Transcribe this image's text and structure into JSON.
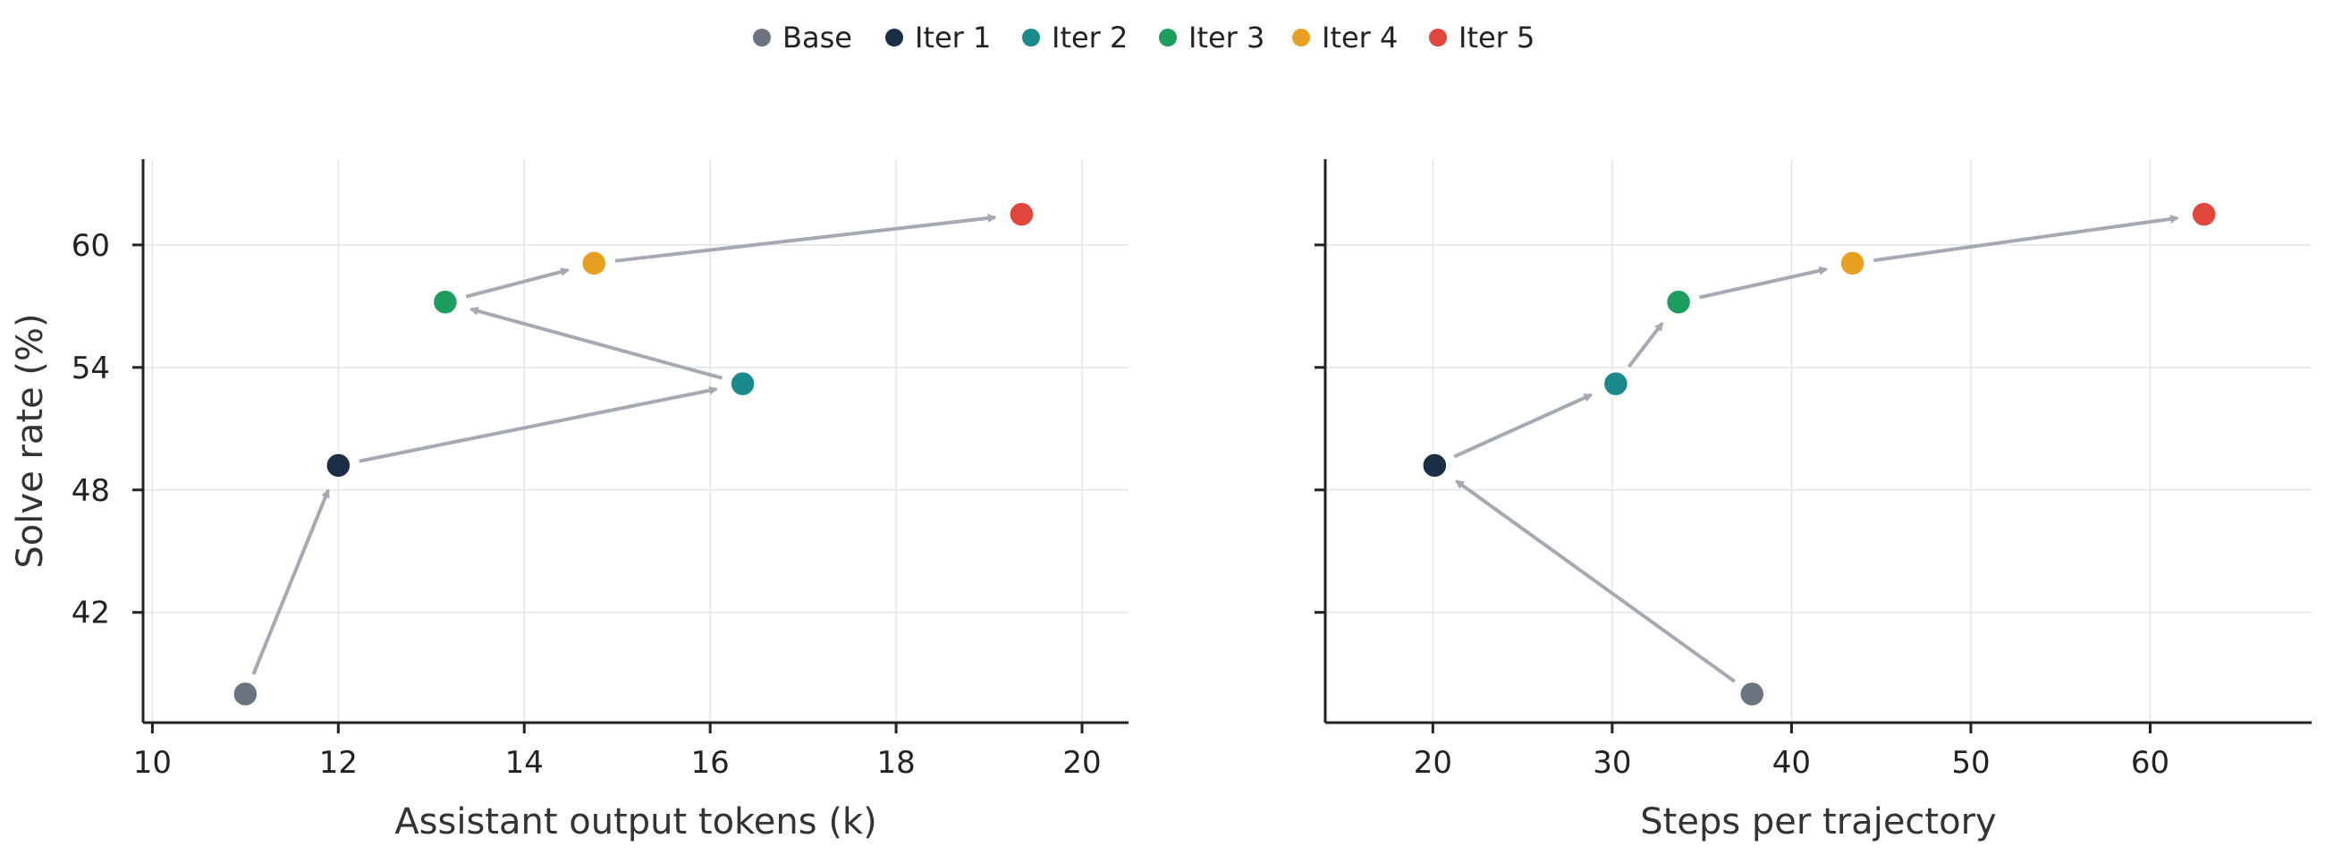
{
  "colors": {
    "grid": "#e3e5e8",
    "axis": "#222222",
    "arrow": "#a4a9b2"
  },
  "legend": {
    "items": [
      {
        "label": "Base",
        "color": "#6b7280"
      },
      {
        "label": "Iter 1",
        "color": "#1a2e45"
      },
      {
        "label": "Iter 2",
        "color": "#1a8a8a"
      },
      {
        "label": "Iter 3",
        "color": "#1e9e5e"
      },
      {
        "label": "Iter 4",
        "color": "#e8a020"
      },
      {
        "label": "Iter 5",
        "color": "#e0463c"
      }
    ]
  },
  "chart_data": [
    {
      "type": "scatter",
      "xlabel": "Assistant output tokens (k)",
      "ylabel": "Solve rate (%)",
      "xlim": [
        9.9,
        20.5
      ],
      "ylim": [
        36.6,
        64.2
      ],
      "xticks": [
        10,
        12,
        14,
        16,
        18,
        20
      ],
      "yticks": [
        42,
        48,
        54,
        60
      ],
      "grid": true,
      "points": [
        {
          "series": "Base",
          "x": 11.0,
          "y": 38.0
        },
        {
          "series": "Iter 1",
          "x": 12.0,
          "y": 49.2
        },
        {
          "series": "Iter 2",
          "x": 16.35,
          "y": 53.2
        },
        {
          "series": "Iter 3",
          "x": 13.15,
          "y": 57.2
        },
        {
          "series": "Iter 4",
          "x": 14.75,
          "y": 59.1
        },
        {
          "series": "Iter 5",
          "x": 19.35,
          "y": 61.5
        }
      ],
      "arrows": "sequential"
    },
    {
      "type": "scatter",
      "xlabel": "Steps per trajectory",
      "ylabel": "",
      "xlim": [
        14.0,
        69.0
      ],
      "ylim": [
        36.6,
        64.2
      ],
      "xticks": [
        20,
        30,
        40,
        50,
        60
      ],
      "yticks": [
        42,
        48,
        54,
        60
      ],
      "show_ytick_labels": false,
      "grid": true,
      "points": [
        {
          "series": "Base",
          "x": 37.8,
          "y": 38.0
        },
        {
          "series": "Iter 1",
          "x": 20.1,
          "y": 49.2
        },
        {
          "series": "Iter 2",
          "x": 30.2,
          "y": 53.2
        },
        {
          "series": "Iter 3",
          "x": 33.7,
          "y": 57.2
        },
        {
          "series": "Iter 4",
          "x": 43.4,
          "y": 59.1
        },
        {
          "series": "Iter 5",
          "x": 63.0,
          "y": 61.5
        }
      ],
      "arrows": "sequential"
    }
  ]
}
